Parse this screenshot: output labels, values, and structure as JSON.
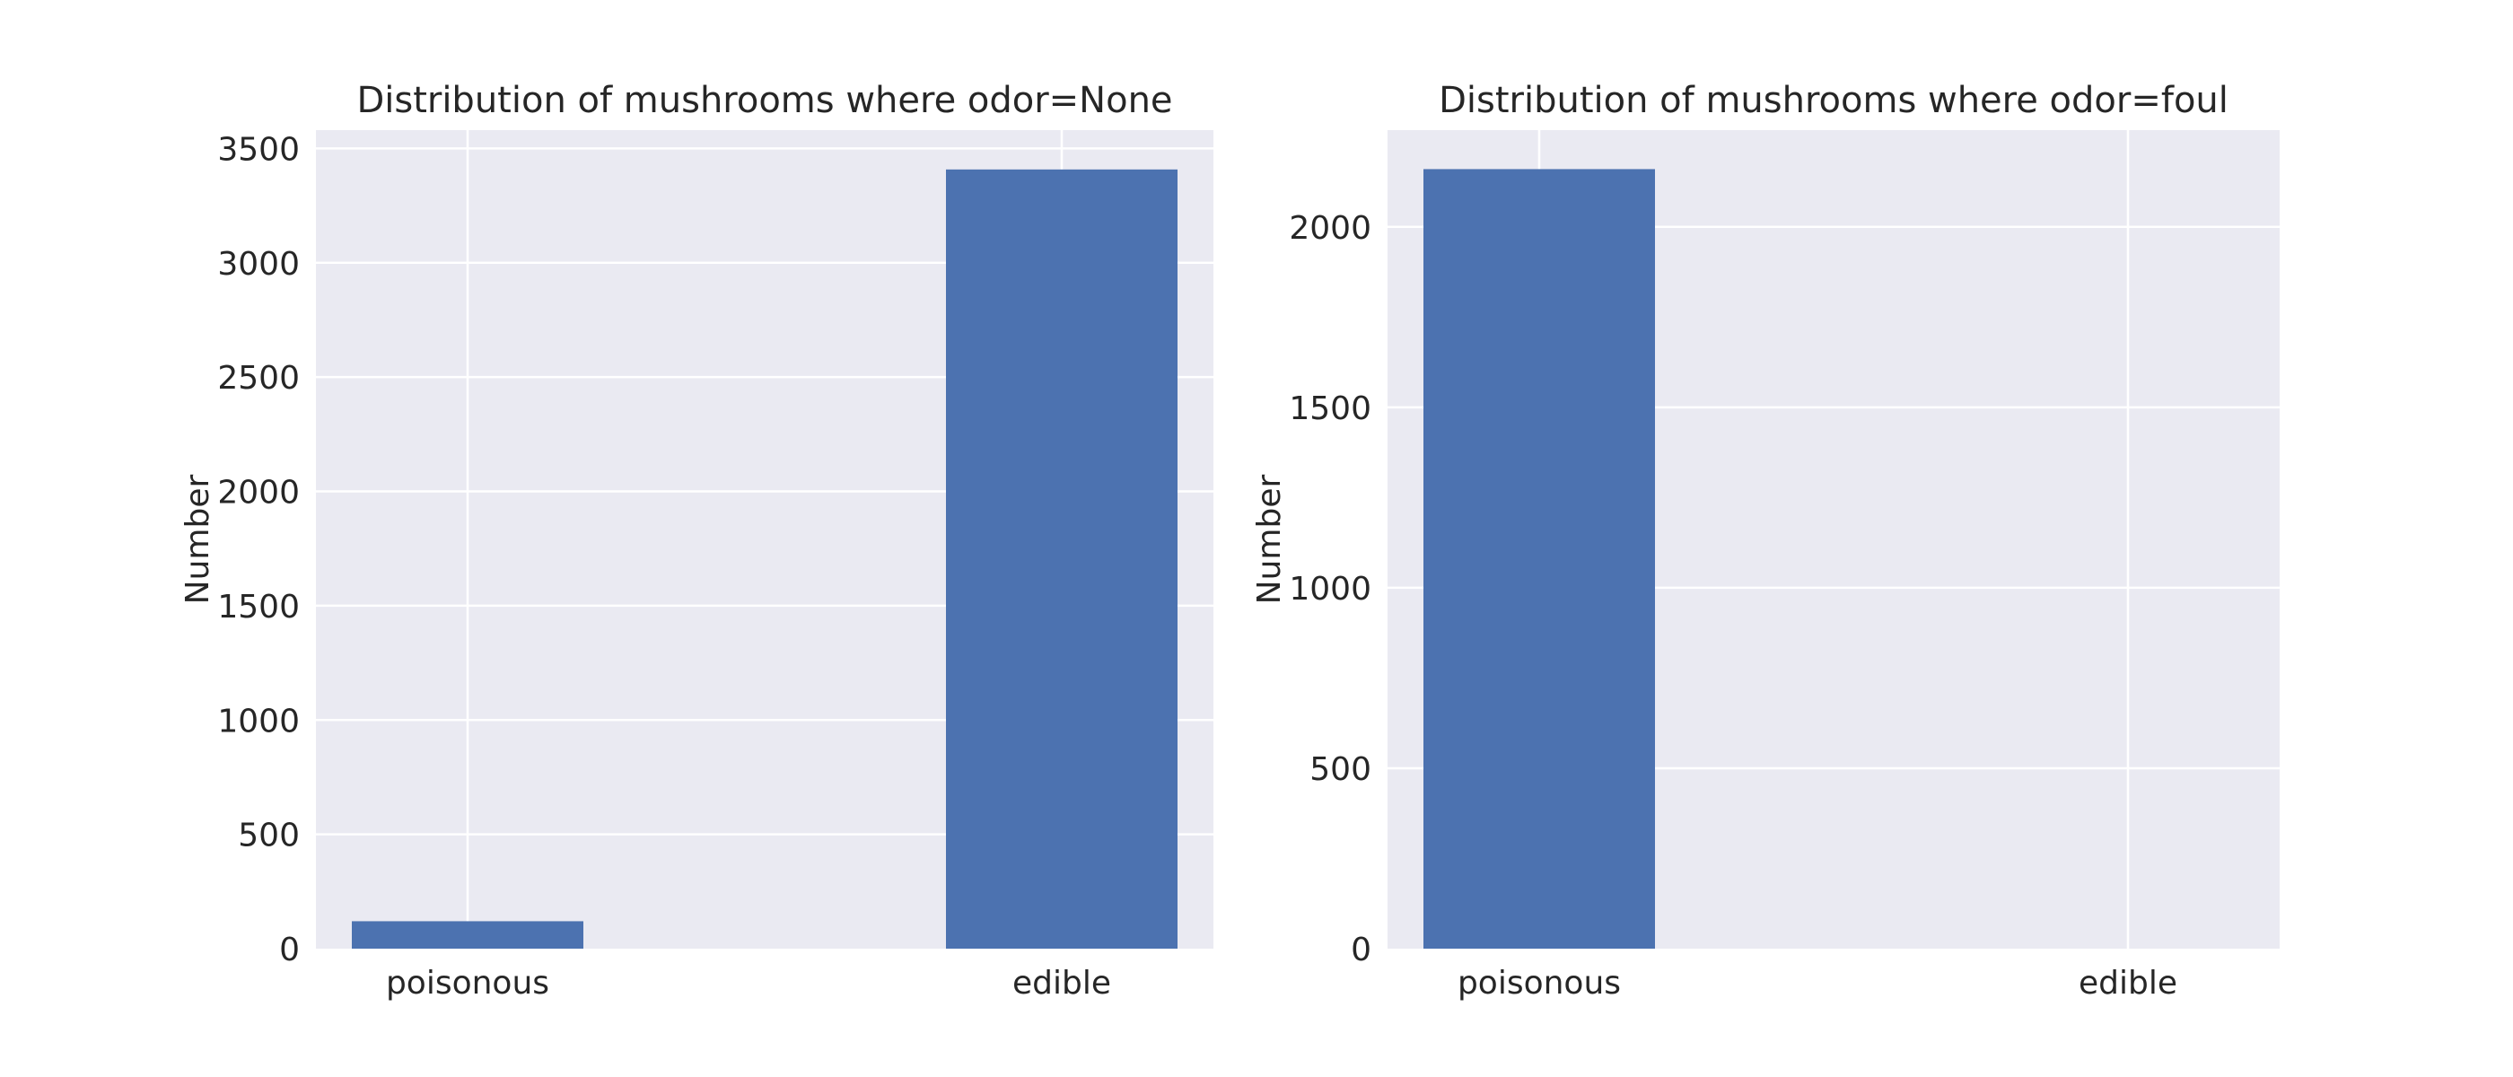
{
  "chart_data": [
    {
      "type": "bar",
      "title": "Distribution of mushrooms where odor=None",
      "xlabel": "",
      "ylabel": "Number",
      "categories": [
        "poisonous",
        "edible"
      ],
      "values": [
        120,
        3408
      ],
      "ylim": [
        0,
        3580
      ],
      "yticks": [
        "0",
        "500",
        "1000",
        "1500",
        "2000",
        "2500",
        "3000",
        "3500"
      ],
      "grid": true
    },
    {
      "type": "bar",
      "title": "Distribution of mushrooms where odor=foul",
      "xlabel": "",
      "ylabel": "Number",
      "categories": [
        "poisonous",
        "edible"
      ],
      "values": [
        2160,
        0
      ],
      "ylim": [
        0,
        2268
      ],
      "yticks": [
        "0",
        "500",
        "1000",
        "1500",
        "2000"
      ],
      "grid": true
    }
  ],
  "colors": {
    "bar": "#4c72b0",
    "plot_background": "#eaeaf2",
    "grid": "#ffffff",
    "text": "#262626"
  }
}
